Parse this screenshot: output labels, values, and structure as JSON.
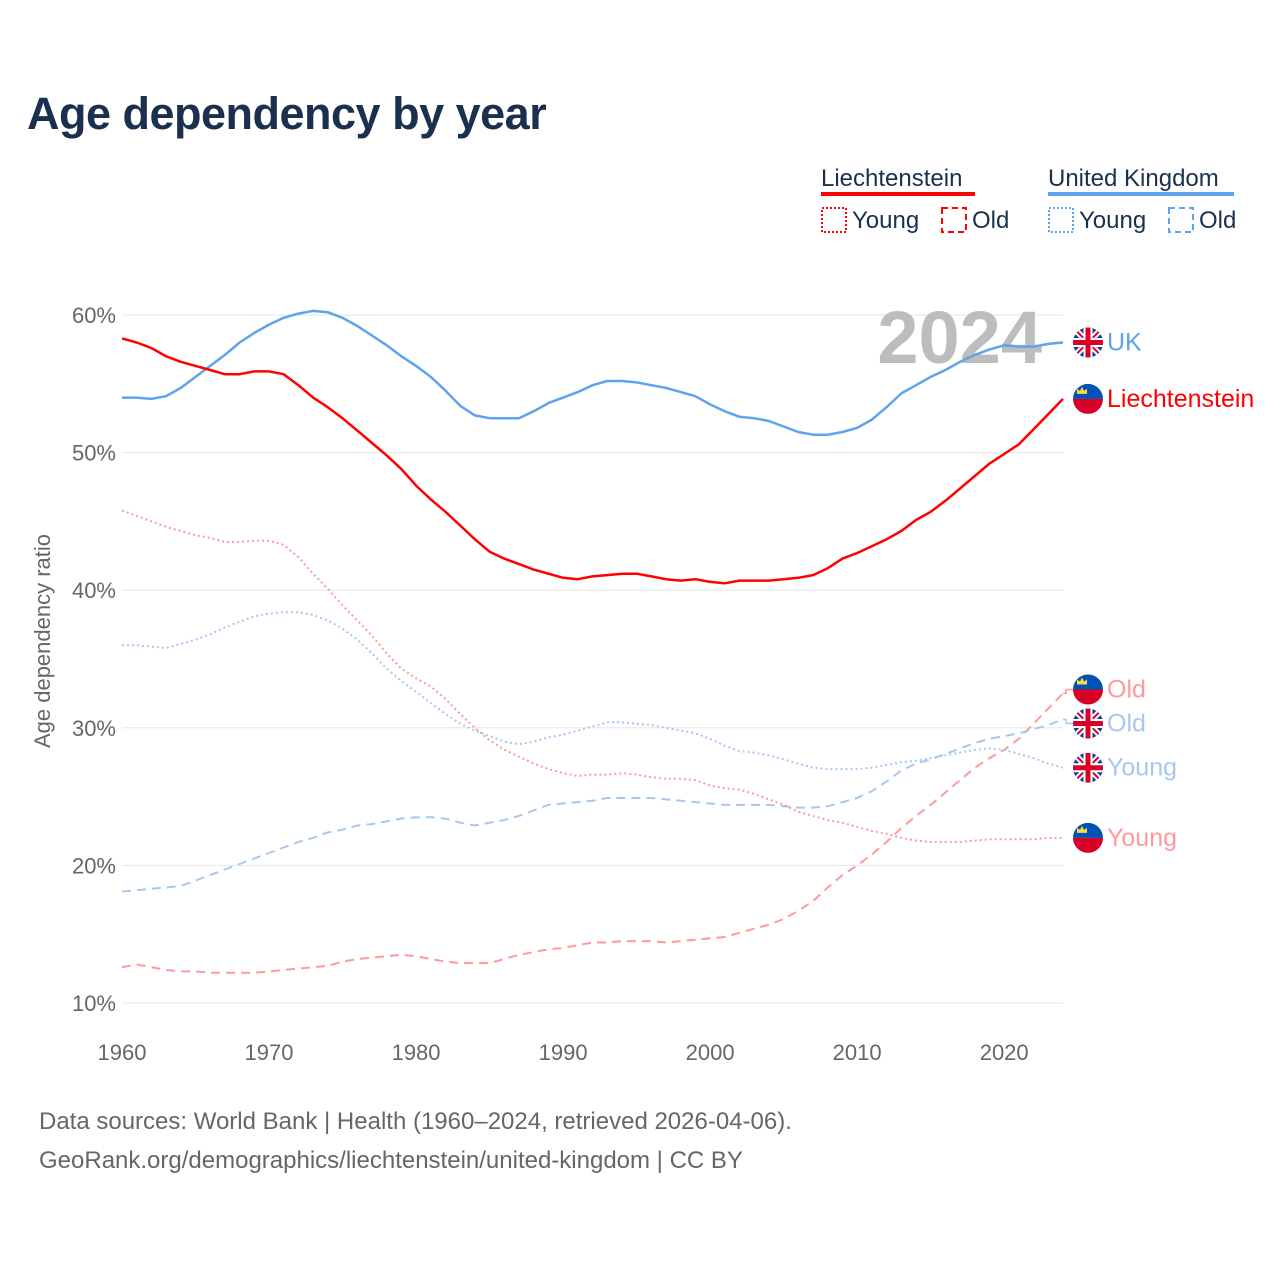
{
  "title": "Age dependency by year",
  "year_watermark": "2024",
  "legend": {
    "groups": [
      {
        "name": "Liechtenstein",
        "color": "#ff0000",
        "light": "#ff0000",
        "items": [
          "Young",
          "Old"
        ]
      },
      {
        "name": "United Kingdom",
        "color": "#5ea3eb",
        "light": "#5ea3eb",
        "items": [
          "Young",
          "Old"
        ]
      }
    ]
  },
  "footer": {
    "line1": "Data sources: World Bank | Health (1960–2024, retrieved 2026-04-06).",
    "line2": "GeoRank.org/demographics/liechtenstein/united-kingdom | CC BY"
  },
  "chart_data": {
    "type": "line",
    "title": "Age dependency by year",
    "xlabel": "",
    "ylabel": "Age dependency ratio",
    "xlim": [
      1960,
      2024
    ],
    "ylim": [
      10,
      60
    ],
    "x_ticks": [
      "1960",
      "1970",
      "1980",
      "1990",
      "2000",
      "2010",
      "2020"
    ],
    "y_ticks": [
      "10%",
      "20%",
      "30%",
      "40%",
      "50%",
      "60%"
    ],
    "grid": true,
    "x_start": 1960,
    "series": [
      {
        "name": "UK",
        "country": "United Kingdom",
        "kind": "total",
        "color": "#5ea3eb",
        "dash": "solid",
        "flag": "uk",
        "values": [
          54.0,
          54.0,
          53.9,
          54.1,
          54.7,
          55.5,
          56.3,
          57.1,
          58.0,
          58.7,
          59.3,
          59.8,
          60.1,
          60.3,
          60.2,
          59.8,
          59.2,
          58.5,
          57.8,
          57.0,
          56.3,
          55.5,
          54.5,
          53.4,
          52.7,
          52.5,
          52.5,
          52.5,
          53.0,
          53.6,
          54.0,
          54.4,
          54.9,
          55.2,
          55.2,
          55.1,
          54.9,
          54.7,
          54.4,
          54.1,
          53.5,
          53.0,
          52.6,
          52.5,
          52.3,
          51.9,
          51.5,
          51.3,
          51.3,
          51.5,
          51.8,
          52.4,
          53.3,
          54.3,
          54.9,
          55.5,
          56.0,
          56.6,
          57.1,
          57.5,
          57.8,
          57.7,
          57.7,
          57.9,
          58.0
        ]
      },
      {
        "name": "Liechtenstein",
        "country": "Liechtenstein",
        "kind": "total",
        "color": "#ff0000",
        "dash": "solid",
        "flag": "li",
        "values": [
          58.3,
          58.0,
          57.6,
          57.0,
          56.6,
          56.3,
          56.0,
          55.7,
          55.7,
          55.9,
          55.9,
          55.7,
          54.9,
          54.0,
          53.3,
          52.5,
          51.6,
          50.7,
          49.8,
          48.8,
          47.6,
          46.6,
          45.7,
          44.7,
          43.7,
          42.8,
          42.3,
          41.9,
          41.5,
          41.2,
          40.9,
          40.8,
          41.0,
          41.1,
          41.2,
          41.2,
          41.0,
          40.8,
          40.7,
          40.8,
          40.6,
          40.5,
          40.7,
          40.7,
          40.7,
          40.8,
          40.9,
          41.1,
          41.6,
          42.3,
          42.7,
          43.2,
          43.7,
          44.3,
          45.1,
          45.7,
          46.5,
          47.4,
          48.3,
          49.2,
          49.9,
          50.6,
          51.7,
          52.8,
          53.9
        ]
      },
      {
        "name": "Old",
        "country": "Liechtenstein",
        "kind": "old",
        "color": "#ff9a9a",
        "dash": "dashed",
        "flag": "li",
        "values": [
          12.6,
          12.8,
          12.6,
          12.4,
          12.3,
          12.3,
          12.2,
          12.2,
          12.2,
          12.2,
          12.3,
          12.4,
          12.5,
          12.6,
          12.7,
          13.0,
          13.2,
          13.3,
          13.4,
          13.5,
          13.4,
          13.2,
          13.0,
          12.9,
          12.9,
          12.9,
          13.2,
          13.5,
          13.7,
          13.9,
          14.0,
          14.2,
          14.4,
          14.4,
          14.5,
          14.5,
          14.5,
          14.4,
          14.5,
          14.6,
          14.7,
          14.8,
          15.1,
          15.4,
          15.7,
          16.1,
          16.7,
          17.4,
          18.4,
          19.3,
          20.0,
          20.8,
          21.7,
          22.7,
          23.6,
          24.4,
          25.3,
          26.2,
          27.1,
          27.8,
          28.4,
          29.2,
          30.3,
          31.4,
          32.5
        ]
      },
      {
        "name": "Old",
        "country": "United Kingdom",
        "kind": "old",
        "color": "#a6c8f0",
        "dash": "dashed",
        "flag": "uk",
        "values": [
          18.1,
          18.2,
          18.3,
          18.4,
          18.5,
          18.9,
          19.3,
          19.7,
          20.1,
          20.5,
          20.9,
          21.3,
          21.7,
          22.0,
          22.4,
          22.6,
          22.9,
          23.0,
          23.2,
          23.4,
          23.5,
          23.5,
          23.4,
          23.1,
          22.9,
          23.1,
          23.3,
          23.6,
          24.0,
          24.4,
          24.5,
          24.6,
          24.7,
          24.9,
          24.9,
          24.9,
          24.9,
          24.8,
          24.7,
          24.6,
          24.5,
          24.4,
          24.4,
          24.4,
          24.4,
          24.3,
          24.2,
          24.2,
          24.3,
          24.6,
          24.9,
          25.4,
          26.1,
          26.9,
          27.4,
          27.7,
          28.1,
          28.5,
          28.9,
          29.2,
          29.4,
          29.6,
          29.9,
          30.2,
          30.6
        ]
      },
      {
        "name": "Young",
        "country": "United Kingdom",
        "kind": "young",
        "color": "#a6c8f0",
        "dash": "dotted",
        "flag": "uk",
        "values": [
          36.0,
          36.0,
          35.9,
          35.8,
          36.1,
          36.4,
          36.8,
          37.3,
          37.7,
          38.1,
          38.3,
          38.4,
          38.4,
          38.2,
          37.8,
          37.2,
          36.4,
          35.4,
          34.3,
          33.4,
          32.6,
          31.8,
          31.0,
          30.3,
          29.8,
          29.4,
          29.0,
          28.8,
          29.0,
          29.3,
          29.5,
          29.8,
          30.1,
          30.4,
          30.4,
          30.3,
          30.2,
          30.0,
          29.8,
          29.6,
          29.2,
          28.7,
          28.3,
          28.2,
          28.0,
          27.7,
          27.4,
          27.1,
          27.0,
          27.0,
          27.0,
          27.1,
          27.3,
          27.5,
          27.6,
          27.8,
          28.0,
          28.2,
          28.4,
          28.5,
          28.4,
          28.1,
          27.8,
          27.4,
          27.1
        ]
      },
      {
        "name": "Young",
        "country": "Liechtenstein",
        "kind": "young",
        "color": "#ff9a9a",
        "dash": "dotted",
        "flag": "li",
        "values": [
          45.8,
          45.4,
          45.0,
          44.6,
          44.3,
          44.0,
          43.8,
          43.5,
          43.5,
          43.6,
          43.6,
          43.3,
          42.4,
          41.2,
          40.1,
          38.9,
          37.8,
          36.7,
          35.4,
          34.3,
          33.6,
          33.0,
          32.1,
          31.0,
          30.0,
          29.1,
          28.4,
          27.9,
          27.4,
          27.0,
          26.7,
          26.5,
          26.6,
          26.6,
          26.7,
          26.6,
          26.4,
          26.3,
          26.3,
          26.2,
          25.8,
          25.6,
          25.5,
          25.2,
          24.8,
          24.4,
          23.9,
          23.6,
          23.3,
          23.1,
          22.8,
          22.5,
          22.3,
          22.0,
          21.8,
          21.7,
          21.7,
          21.7,
          21.8,
          21.9,
          21.9,
          21.9,
          21.9,
          22.0,
          22.0
        ]
      }
    ]
  }
}
